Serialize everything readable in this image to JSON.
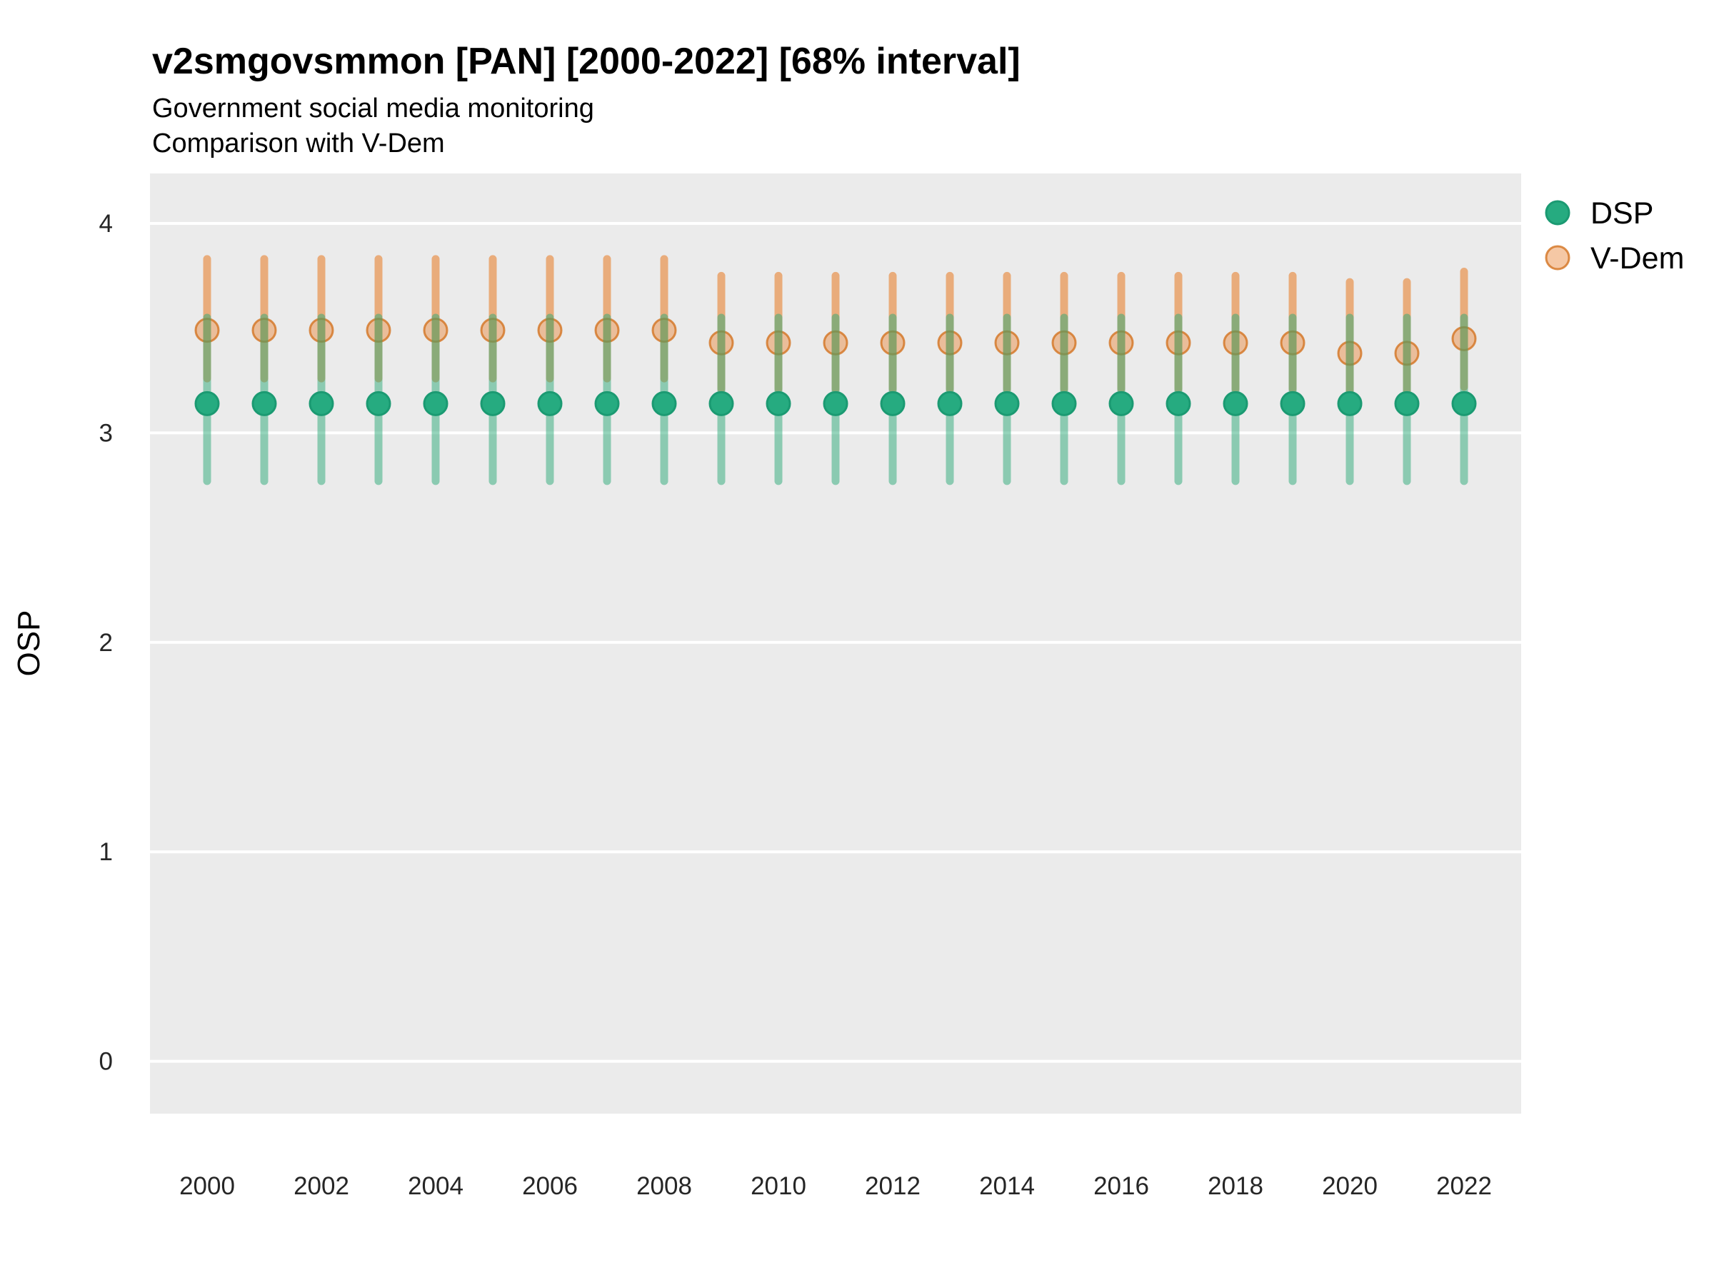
{
  "title": "v2smgovsmmon [PAN] [2000-2022] [68% interval]",
  "subtitle_line1": "Government social media monitoring",
  "subtitle_line2": "Comparison with V-Dem",
  "y_axis_label": "OSP",
  "legend": {
    "position": "right",
    "items": [
      {
        "id": "dsp",
        "label": "DSP"
      },
      {
        "id": "vdem",
        "label": "V-Dem"
      }
    ]
  },
  "colors": {
    "background": "#FFFFFF",
    "panel_background": "#EBEBEB",
    "grid_line": "#FFFFFF",
    "dsp_point_fill": "#26AB80",
    "dsp_point_stroke": "#1B9A72",
    "dsp_range_line": "rgba(44,170,120,0.5)",
    "vdem_point_fill": "rgba(233,134,55,0.45)",
    "vdem_point_stroke": "rgba(211,115,33,0.8)",
    "vdem_range_line": "rgba(233,134,55,0.62)",
    "title_text": "#000000",
    "axis_text": "#262626"
  },
  "chart_data": {
    "type": "pointrange",
    "title": "v2smgovsmmon [PAN] [2000-2022] [68% interval]",
    "subtitle": [
      "Government social media monitoring",
      "Comparison with V-Dem"
    ],
    "interval": "68%",
    "xlabel": "",
    "ylabel": "OSP",
    "ylim": [
      0,
      4
    ],
    "y_ticks": [
      0,
      1,
      2,
      3,
      4
    ],
    "x_tick_labels": [
      "2000",
      "2002",
      "2004",
      "2006",
      "2008",
      "2010",
      "2012",
      "2014",
      "2016",
      "2018",
      "2020",
      "2022"
    ],
    "grid": "horizontal major gridlines only, white on gray panel",
    "legend_position": "right",
    "x": [
      2000,
      2001,
      2002,
      2003,
      2004,
      2005,
      2006,
      2007,
      2008,
      2009,
      2010,
      2011,
      2012,
      2013,
      2014,
      2015,
      2016,
      2017,
      2018,
      2019,
      2020,
      2021,
      2022
    ],
    "series": [
      {
        "name": "DSP",
        "estimate": [
          3.14,
          3.14,
          3.14,
          3.14,
          3.14,
          3.14,
          3.14,
          3.14,
          3.14,
          3.14,
          3.14,
          3.14,
          3.14,
          3.14,
          3.14,
          3.14,
          3.14,
          3.14,
          3.14,
          3.14,
          3.14,
          3.14,
          3.14
        ],
        "low": [
          2.77,
          2.77,
          2.77,
          2.77,
          2.77,
          2.77,
          2.77,
          2.77,
          2.77,
          2.77,
          2.77,
          2.77,
          2.77,
          2.77,
          2.77,
          2.77,
          2.77,
          2.77,
          2.77,
          2.77,
          2.77,
          2.77,
          2.77
        ],
        "high": [
          3.55,
          3.55,
          3.55,
          3.55,
          3.55,
          3.55,
          3.55,
          3.55,
          3.55,
          3.55,
          3.55,
          3.55,
          3.55,
          3.55,
          3.55,
          3.55,
          3.55,
          3.55,
          3.55,
          3.55,
          3.55,
          3.55,
          3.55
        ]
      },
      {
        "name": "V-Dem",
        "estimate": [
          3.49,
          3.49,
          3.49,
          3.49,
          3.49,
          3.49,
          3.49,
          3.49,
          3.49,
          3.43,
          3.43,
          3.43,
          3.43,
          3.43,
          3.43,
          3.43,
          3.43,
          3.43,
          3.43,
          3.43,
          3.38,
          3.38,
          3.45
        ],
        "low": [
          3.26,
          3.26,
          3.26,
          3.26,
          3.26,
          3.26,
          3.26,
          3.26,
          3.26,
          3.21,
          3.21,
          3.21,
          3.21,
          3.21,
          3.21,
          3.21,
          3.21,
          3.21,
          3.21,
          3.21,
          3.16,
          3.16,
          3.22
        ],
        "high": [
          3.83,
          3.83,
          3.83,
          3.83,
          3.83,
          3.83,
          3.83,
          3.83,
          3.83,
          3.75,
          3.75,
          3.75,
          3.75,
          3.75,
          3.75,
          3.75,
          3.75,
          3.75,
          3.75,
          3.75,
          3.72,
          3.72,
          3.77
        ]
      }
    ]
  }
}
